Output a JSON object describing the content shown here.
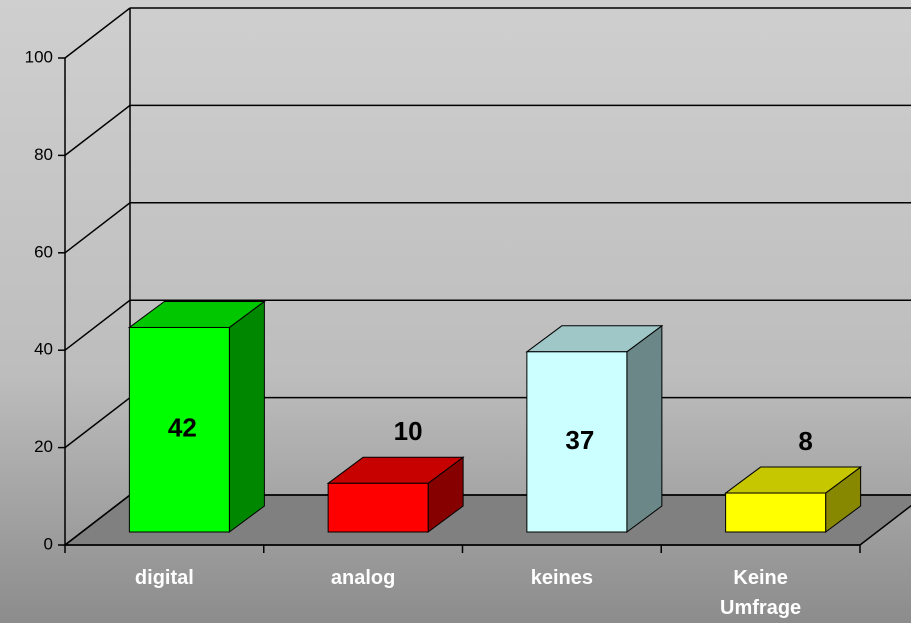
{
  "chart_data": {
    "type": "bar3d",
    "categories": [
      "digital",
      "analog",
      "keines",
      "Keine Umfrage"
    ],
    "values": [
      42,
      10,
      37,
      8
    ],
    "colors": [
      "#00ff00",
      "#ff0000",
      "#ccffff",
      "#ffff00"
    ],
    "ylim": [
      0,
      100
    ],
    "yticks": [
      0,
      20,
      40,
      60,
      80,
      100
    ],
    "grid": true
  }
}
